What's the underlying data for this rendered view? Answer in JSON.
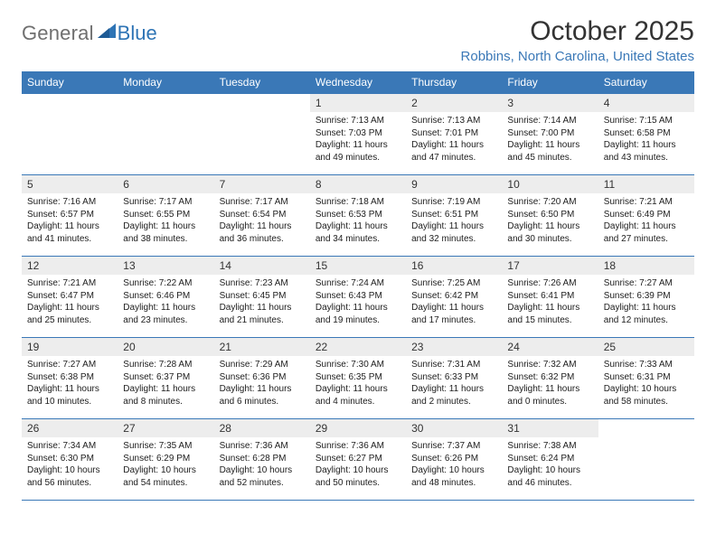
{
  "brand": {
    "general": "General",
    "blue": "Blue"
  },
  "title": "October 2025",
  "location": "Robbins, North Carolina, United States",
  "colors": {
    "header_bg": "#3a78b7",
    "header_text": "#ffffff",
    "daynum_bg": "#ededed",
    "rule": "#3a78b7",
    "title_color": "#333333",
    "location_color": "#3a78b7",
    "logo_gray": "#6f6f6f",
    "logo_blue": "#2e74b5"
  },
  "day_headers": [
    "Sunday",
    "Monday",
    "Tuesday",
    "Wednesday",
    "Thursday",
    "Friday",
    "Saturday"
  ],
  "weeks": [
    [
      {
        "n": "",
        "lines": []
      },
      {
        "n": "",
        "lines": []
      },
      {
        "n": "",
        "lines": []
      },
      {
        "n": "1",
        "lines": [
          "Sunrise: 7:13 AM",
          "Sunset: 7:03 PM",
          "Daylight: 11 hours and 49 minutes."
        ]
      },
      {
        "n": "2",
        "lines": [
          "Sunrise: 7:13 AM",
          "Sunset: 7:01 PM",
          "Daylight: 11 hours and 47 minutes."
        ]
      },
      {
        "n": "3",
        "lines": [
          "Sunrise: 7:14 AM",
          "Sunset: 7:00 PM",
          "Daylight: 11 hours and 45 minutes."
        ]
      },
      {
        "n": "4",
        "lines": [
          "Sunrise: 7:15 AM",
          "Sunset: 6:58 PM",
          "Daylight: 11 hours and 43 minutes."
        ]
      }
    ],
    [
      {
        "n": "5",
        "lines": [
          "Sunrise: 7:16 AM",
          "Sunset: 6:57 PM",
          "Daylight: 11 hours and 41 minutes."
        ]
      },
      {
        "n": "6",
        "lines": [
          "Sunrise: 7:17 AM",
          "Sunset: 6:55 PM",
          "Daylight: 11 hours and 38 minutes."
        ]
      },
      {
        "n": "7",
        "lines": [
          "Sunrise: 7:17 AM",
          "Sunset: 6:54 PM",
          "Daylight: 11 hours and 36 minutes."
        ]
      },
      {
        "n": "8",
        "lines": [
          "Sunrise: 7:18 AM",
          "Sunset: 6:53 PM",
          "Daylight: 11 hours and 34 minutes."
        ]
      },
      {
        "n": "9",
        "lines": [
          "Sunrise: 7:19 AM",
          "Sunset: 6:51 PM",
          "Daylight: 11 hours and 32 minutes."
        ]
      },
      {
        "n": "10",
        "lines": [
          "Sunrise: 7:20 AM",
          "Sunset: 6:50 PM",
          "Daylight: 11 hours and 30 minutes."
        ]
      },
      {
        "n": "11",
        "lines": [
          "Sunrise: 7:21 AM",
          "Sunset: 6:49 PM",
          "Daylight: 11 hours and 27 minutes."
        ]
      }
    ],
    [
      {
        "n": "12",
        "lines": [
          "Sunrise: 7:21 AM",
          "Sunset: 6:47 PM",
          "Daylight: 11 hours and 25 minutes."
        ]
      },
      {
        "n": "13",
        "lines": [
          "Sunrise: 7:22 AM",
          "Sunset: 6:46 PM",
          "Daylight: 11 hours and 23 minutes."
        ]
      },
      {
        "n": "14",
        "lines": [
          "Sunrise: 7:23 AM",
          "Sunset: 6:45 PM",
          "Daylight: 11 hours and 21 minutes."
        ]
      },
      {
        "n": "15",
        "lines": [
          "Sunrise: 7:24 AM",
          "Sunset: 6:43 PM",
          "Daylight: 11 hours and 19 minutes."
        ]
      },
      {
        "n": "16",
        "lines": [
          "Sunrise: 7:25 AM",
          "Sunset: 6:42 PM",
          "Daylight: 11 hours and 17 minutes."
        ]
      },
      {
        "n": "17",
        "lines": [
          "Sunrise: 7:26 AM",
          "Sunset: 6:41 PM",
          "Daylight: 11 hours and 15 minutes."
        ]
      },
      {
        "n": "18",
        "lines": [
          "Sunrise: 7:27 AM",
          "Sunset: 6:39 PM",
          "Daylight: 11 hours and 12 minutes."
        ]
      }
    ],
    [
      {
        "n": "19",
        "lines": [
          "Sunrise: 7:27 AM",
          "Sunset: 6:38 PM",
          "Daylight: 11 hours and 10 minutes."
        ]
      },
      {
        "n": "20",
        "lines": [
          "Sunrise: 7:28 AM",
          "Sunset: 6:37 PM",
          "Daylight: 11 hours and 8 minutes."
        ]
      },
      {
        "n": "21",
        "lines": [
          "Sunrise: 7:29 AM",
          "Sunset: 6:36 PM",
          "Daylight: 11 hours and 6 minutes."
        ]
      },
      {
        "n": "22",
        "lines": [
          "Sunrise: 7:30 AM",
          "Sunset: 6:35 PM",
          "Daylight: 11 hours and 4 minutes."
        ]
      },
      {
        "n": "23",
        "lines": [
          "Sunrise: 7:31 AM",
          "Sunset: 6:33 PM",
          "Daylight: 11 hours and 2 minutes."
        ]
      },
      {
        "n": "24",
        "lines": [
          "Sunrise: 7:32 AM",
          "Sunset: 6:32 PM",
          "Daylight: 11 hours and 0 minutes."
        ]
      },
      {
        "n": "25",
        "lines": [
          "Sunrise: 7:33 AM",
          "Sunset: 6:31 PM",
          "Daylight: 10 hours and 58 minutes."
        ]
      }
    ],
    [
      {
        "n": "26",
        "lines": [
          "Sunrise: 7:34 AM",
          "Sunset: 6:30 PM",
          "Daylight: 10 hours and 56 minutes."
        ]
      },
      {
        "n": "27",
        "lines": [
          "Sunrise: 7:35 AM",
          "Sunset: 6:29 PM",
          "Daylight: 10 hours and 54 minutes."
        ]
      },
      {
        "n": "28",
        "lines": [
          "Sunrise: 7:36 AM",
          "Sunset: 6:28 PM",
          "Daylight: 10 hours and 52 minutes."
        ]
      },
      {
        "n": "29",
        "lines": [
          "Sunrise: 7:36 AM",
          "Sunset: 6:27 PM",
          "Daylight: 10 hours and 50 minutes."
        ]
      },
      {
        "n": "30",
        "lines": [
          "Sunrise: 7:37 AM",
          "Sunset: 6:26 PM",
          "Daylight: 10 hours and 48 minutes."
        ]
      },
      {
        "n": "31",
        "lines": [
          "Sunrise: 7:38 AM",
          "Sunset: 6:24 PM",
          "Daylight: 10 hours and 46 minutes."
        ]
      },
      {
        "n": "",
        "lines": []
      }
    ]
  ]
}
